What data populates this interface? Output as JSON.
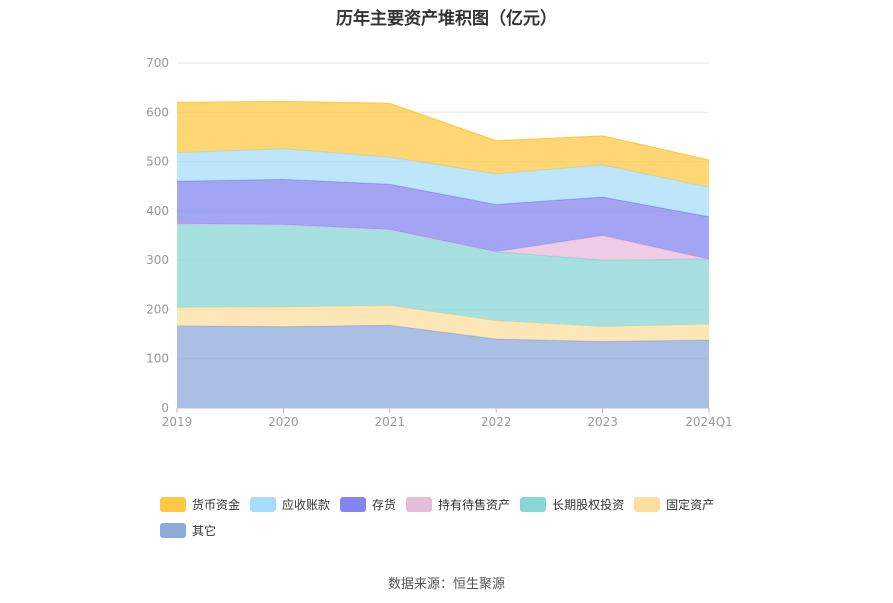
{
  "chart_data": {
    "type": "area",
    "stacked": true,
    "title": "历年主要资产堆积图（亿元）",
    "categories": [
      "2019",
      "2020",
      "2021",
      "2022",
      "2023",
      "2024Q1"
    ],
    "ylim": [
      0,
      700
    ],
    "yticks": [
      0,
      100,
      200,
      300,
      400,
      500,
      600,
      700
    ],
    "grid": true,
    "legend_position": "bottom-left",
    "series": [
      {
        "name": "其它",
        "color": "#8eaadb",
        "values": [
          167,
          165,
          168,
          140,
          135,
          138
        ]
      },
      {
        "name": "固定资产",
        "color": "#fddf9f",
        "values": [
          37,
          40,
          40,
          37,
          30,
          32
        ]
      },
      {
        "name": "长期股权投资",
        "color": "#8ad6d6",
        "values": [
          170,
          167,
          154,
          140,
          135,
          132
        ]
      },
      {
        "name": "持有待售资产",
        "color": "#e8bbdc",
        "values": [
          0,
          0,
          0,
          0,
          50,
          0
        ]
      },
      {
        "name": "存货",
        "color": "#8585f2",
        "values": [
          86,
          92,
          92,
          96,
          78,
          86
        ]
      },
      {
        "name": "应收账款",
        "color": "#a8ddf9",
        "values": [
          58,
          62,
          55,
          62,
          65,
          60
        ]
      },
      {
        "name": "货币资金",
        "color": "#ffc845",
        "values": [
          102,
          96,
          109,
          67,
          59,
          55
        ]
      }
    ]
  },
  "legend_order": [
    "货币资金",
    "应收账款",
    "存货",
    "持有待售资产",
    "长期股权投资",
    "固定资产",
    "其它"
  ],
  "source": "数据来源：恒生聚源"
}
